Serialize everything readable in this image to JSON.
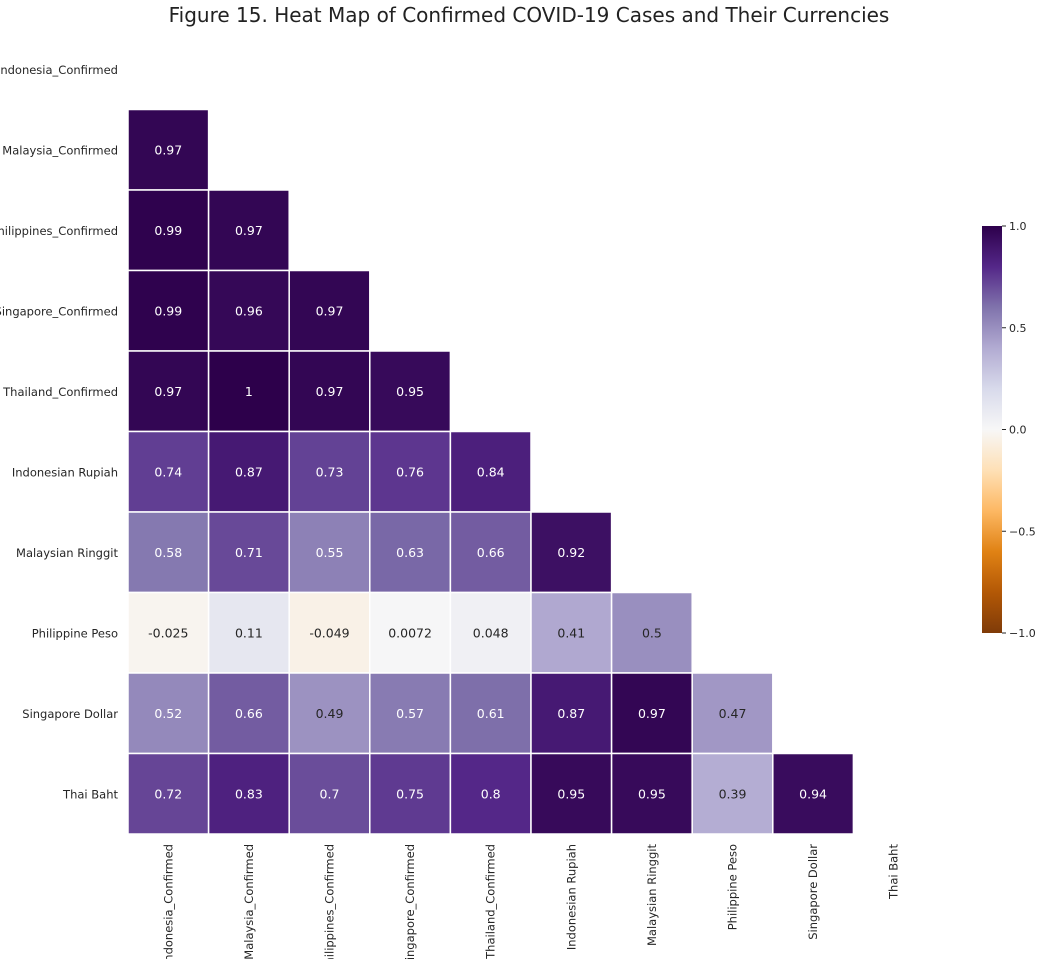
{
  "chart_data": {
    "type": "heatmap",
    "title": "Figure 15.  Heat Map of Confirmed COVID-19 Cases and Their Currencies",
    "row_labels": [
      "Indonesia_Confirmed",
      "Malaysia_Confirmed",
      "Philippines_Confirmed",
      "Singapore_Confirmed",
      "Thailand_Confirmed",
      "Indonesian Rupiah",
      "Malaysian Ringgit",
      "Philippine Peso",
      "Singapore Dollar",
      "Thai Baht"
    ],
    "col_labels": [
      "Indonesia_Confirmed",
      "Malaysia_Confirmed",
      "Philippines_Confirmed",
      "Singapore_Confirmed",
      "Thailand_Confirmed",
      "Indonesian Rupiah",
      "Malaysian Ringgit",
      "Philippine Peso",
      "Singapore Dollar",
      "Thai Baht"
    ],
    "mask": "upper triangle including diagonal",
    "values": [
      [],
      [
        "0.97"
      ],
      [
        "0.99",
        "0.97"
      ],
      [
        "0.99",
        "0.96",
        "0.97"
      ],
      [
        "0.97",
        "1",
        "0.97",
        "0.95"
      ],
      [
        "0.74",
        "0.87",
        "0.73",
        "0.76",
        "0.84"
      ],
      [
        "0.58",
        "0.71",
        "0.55",
        "0.63",
        "0.66",
        "0.92"
      ],
      [
        "-0.025",
        "0.11",
        "-0.049",
        "0.0072",
        "0.048",
        "0.41",
        "0.5"
      ],
      [
        "0.52",
        "0.66",
        "0.49",
        "0.57",
        "0.61",
        "0.87",
        "0.97",
        "0.47"
      ],
      [
        "0.72",
        "0.83",
        "0.7",
        "0.75",
        "0.8",
        "0.95",
        "0.95",
        "0.39",
        "0.94"
      ]
    ],
    "colorbar": {
      "vmin": -1.0,
      "vmax": 1.0,
      "tick_values": [
        1.0,
        0.5,
        0.0,
        -0.5,
        -1.0
      ],
      "tick_labels": [
        "1.0",
        "0.5",
        "0.0",
        "−0.5",
        "−1.0"
      ],
      "colormap": "PuOr",
      "stops": [
        "#7f3b08",
        "#b35806",
        "#e08214",
        "#fdb863",
        "#fee0b6",
        "#f7f7f7",
        "#d8daeb",
        "#b2abd2",
        "#8073ac",
        "#542788",
        "#2d004b"
      ]
    },
    "grid_line_color": "#ffffff"
  }
}
